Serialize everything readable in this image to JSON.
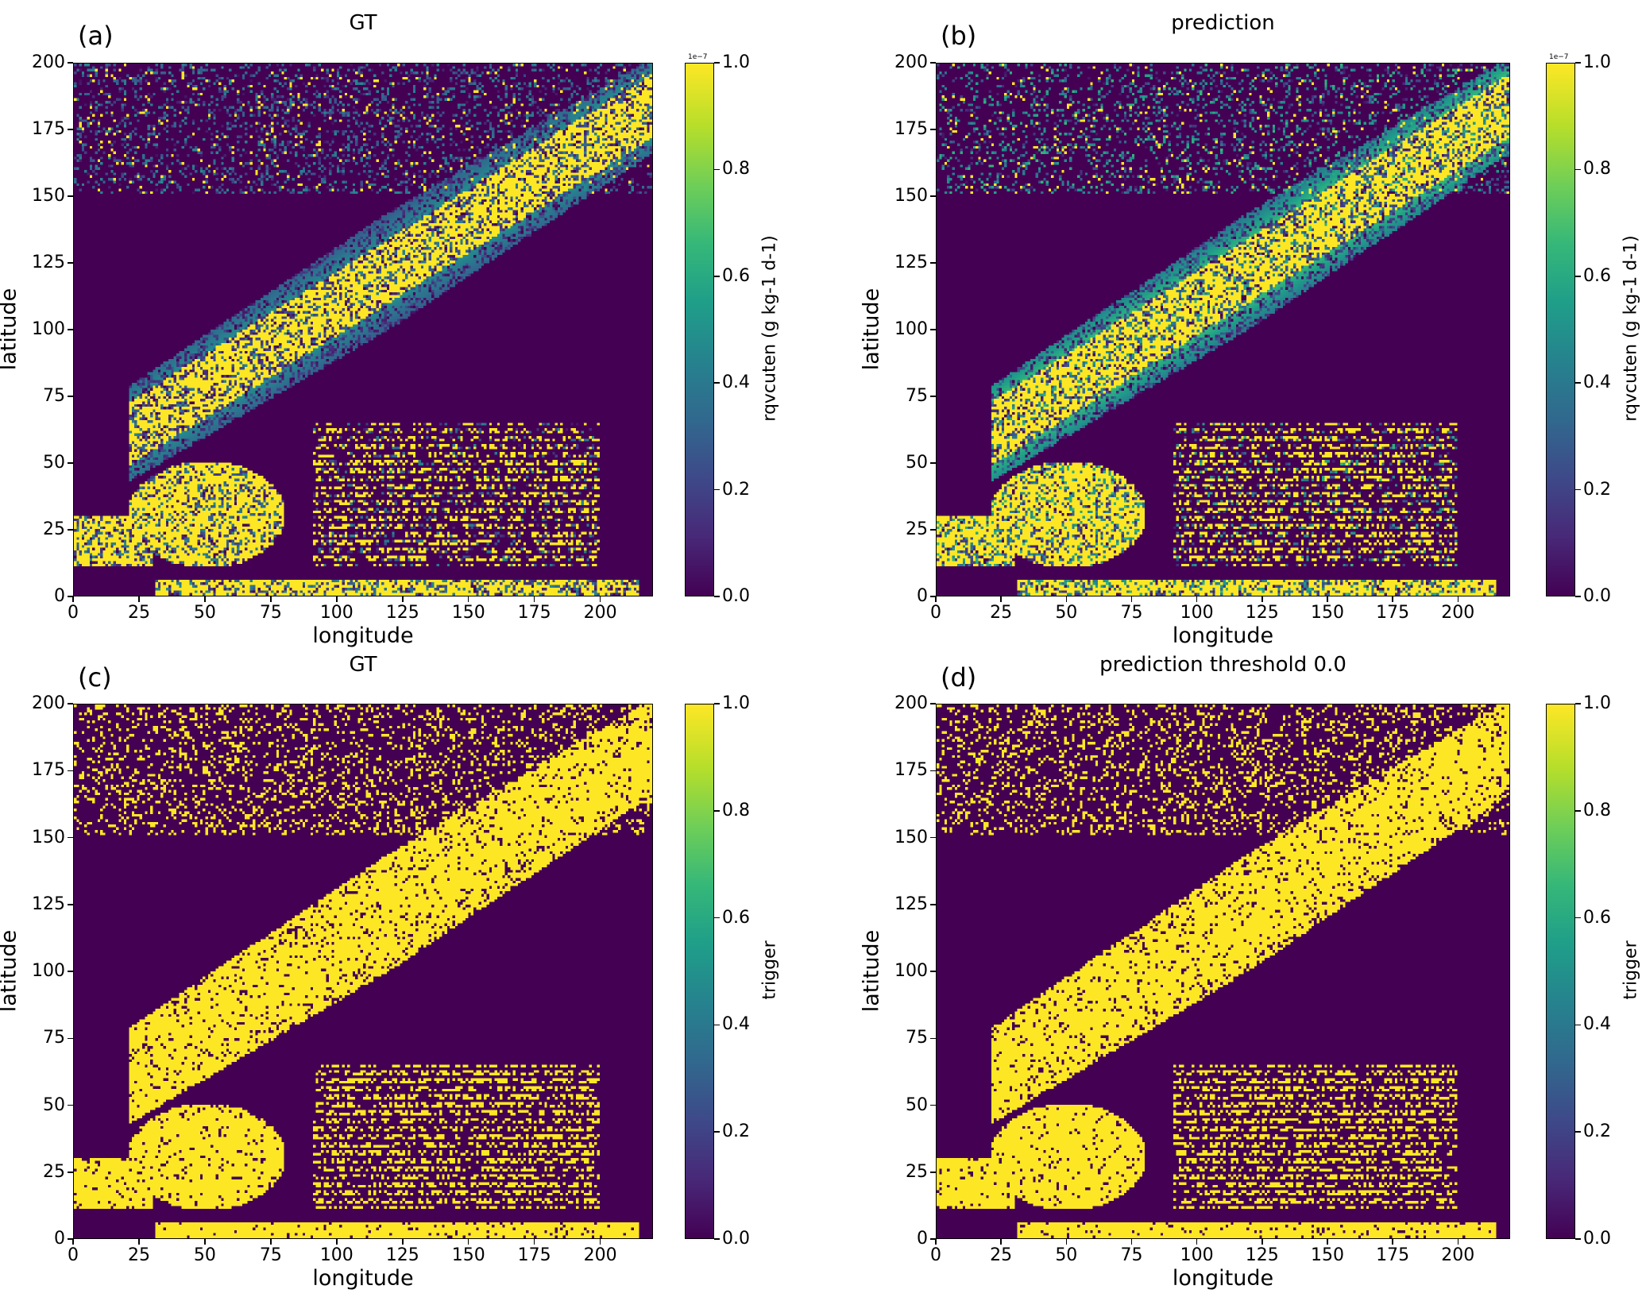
{
  "chart_data": [
    {
      "type": "heatmap",
      "panel": "(a)",
      "title": "GT",
      "xlabel": "longitude",
      "ylabel": "latitude",
      "xlim": [
        0,
        220
      ],
      "ylim": [
        0,
        200
      ],
      "xticks": [
        "0",
        "25",
        "50",
        "75",
        "100",
        "125",
        "150",
        "175",
        "200"
      ],
      "yticks": [
        "0",
        "25",
        "50",
        "75",
        "100",
        "125",
        "150",
        "175",
        "200"
      ],
      "colorbar": {
        "label": "rqvcuten (g kg-1 d-1)",
        "ticks": [
          "0.0",
          "0.2",
          "0.4",
          "0.6",
          "0.8",
          "1.0"
        ],
        "range": [
          0,
          1.0
        ],
        "exponent": "1e−7"
      },
      "colormap": "viridis",
      "field": "continuous"
    },
    {
      "type": "heatmap",
      "panel": "(b)",
      "title": "prediction",
      "xlabel": "longitude",
      "ylabel": "latitude",
      "xlim": [
        0,
        220
      ],
      "ylim": [
        0,
        200
      ],
      "xticks": [
        "0",
        "25",
        "50",
        "75",
        "100",
        "125",
        "150",
        "175",
        "200"
      ],
      "yticks": [
        "0",
        "25",
        "50",
        "75",
        "100",
        "125",
        "150",
        "175",
        "200"
      ],
      "colorbar": {
        "label": "rqvcuten (g kg-1 d-1)",
        "ticks": [
          "0.0",
          "0.2",
          "0.4",
          "0.6",
          "0.8",
          "1.0"
        ],
        "range": [
          0,
          1.0
        ],
        "exponent": "1e−7"
      },
      "colormap": "viridis",
      "field": "continuous"
    },
    {
      "type": "heatmap",
      "panel": "(c)",
      "title": "GT",
      "xlabel": "longitude",
      "ylabel": "latitude",
      "xlim": [
        0,
        220
      ],
      "ylim": [
        0,
        200
      ],
      "xticks": [
        "0",
        "25",
        "50",
        "75",
        "100",
        "125",
        "150",
        "175",
        "200"
      ],
      "yticks": [
        "0",
        "25",
        "50",
        "75",
        "100",
        "125",
        "150",
        "175",
        "200"
      ],
      "colorbar": {
        "label": "trigger",
        "ticks": [
          "0.0",
          "0.2",
          "0.4",
          "0.6",
          "0.8",
          "1.0"
        ],
        "range": [
          0,
          1.0
        ]
      },
      "colormap": "viridis",
      "field": "binary"
    },
    {
      "type": "heatmap",
      "panel": "(d)",
      "title": "prediction threshold 0.0",
      "xlabel": "longitude",
      "ylabel": "latitude",
      "xlim": [
        0,
        220
      ],
      "ylim": [
        0,
        200
      ],
      "xticks": [
        "0",
        "25",
        "50",
        "75",
        "100",
        "125",
        "150",
        "175",
        "200"
      ],
      "yticks": [
        "0",
        "25",
        "50",
        "75",
        "100",
        "125",
        "150",
        "175",
        "200"
      ],
      "colorbar": {
        "label": "trigger",
        "ticks": [
          "0.0",
          "0.2",
          "0.4",
          "0.6",
          "0.8",
          "1.0"
        ],
        "range": [
          0,
          1.0
        ]
      },
      "colormap": "viridis",
      "field": "binary"
    }
  ]
}
